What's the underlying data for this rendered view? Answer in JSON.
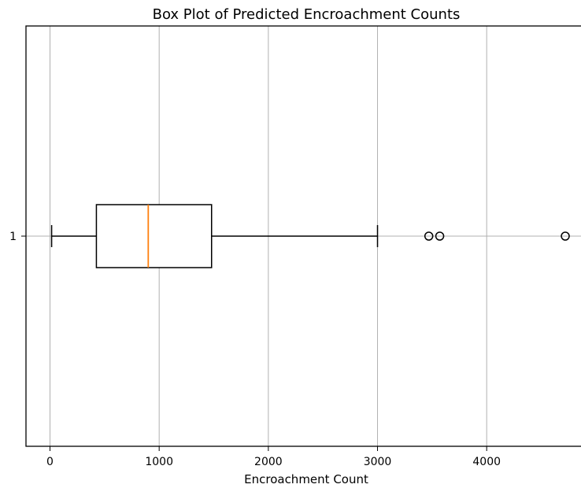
{
  "chart_data": {
    "type": "boxplot",
    "title": "Box Plot of Predicted Encroachment Counts",
    "xlabel": "Encroachment Count",
    "ylabel": "",
    "orientation": "horizontal",
    "xlim": [
      -220,
      4900
    ],
    "x_ticks": [
      0,
      1000,
      2000,
      3000,
      4000
    ],
    "x_tick_labels": [
      "0",
      "1000",
      "2000",
      "3000",
      "4000"
    ],
    "y_tick_labels": [
      "1"
    ],
    "grid": true,
    "boxes": [
      {
        "name": "1",
        "whisker_low": 15,
        "q1": 425,
        "median": 900,
        "q3": 1480,
        "whisker_high": 3000,
        "outliers": [
          3470,
          3570,
          4720
        ]
      }
    ],
    "colors": {
      "box": "#000000",
      "median": "#ff7f0e",
      "grid": "#b0b0b0"
    }
  }
}
